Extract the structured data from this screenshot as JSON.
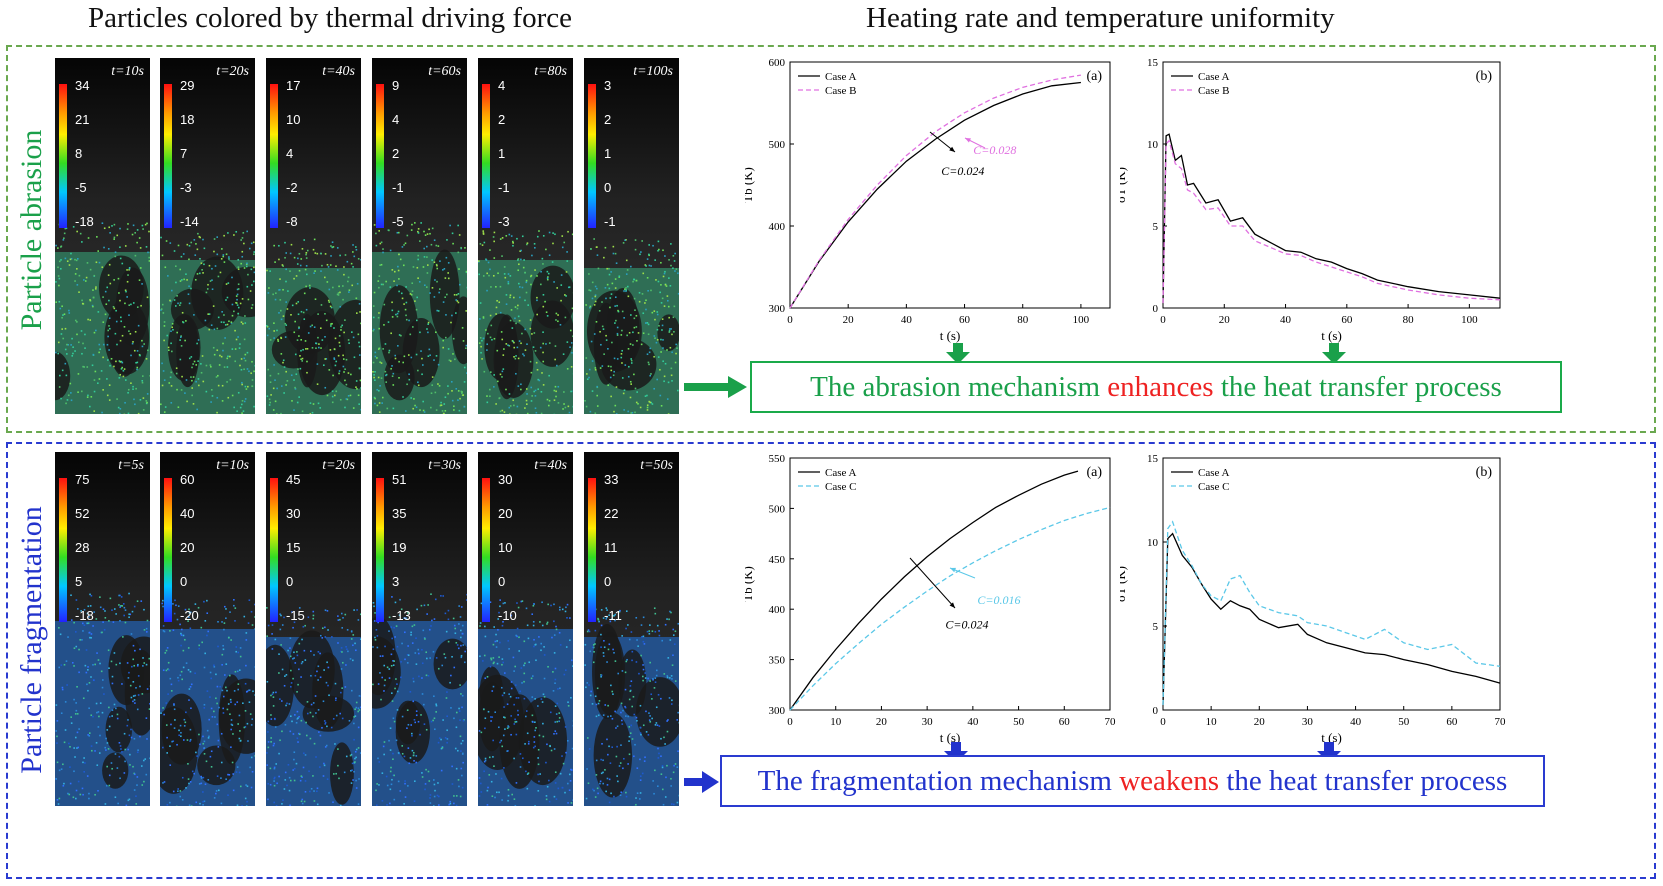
{
  "headers": {
    "left": "Particles colored by thermal driving force",
    "right": "Heating rate and temperature uniformity"
  },
  "colors": {
    "abrasion": "#1aa04a",
    "fragmentation": "#2233cc",
    "highlight": "#ee2222",
    "caseA": "#000000",
    "caseB": "#e070e0",
    "caseC": "#5bc8e8"
  },
  "abrasion": {
    "side_label": "Particle abrasion",
    "panels": [
      {
        "time": "t=10s",
        "ticks": [
          "34",
          "21",
          "8",
          "-5",
          "-18"
        ]
      },
      {
        "time": "t=20s",
        "ticks": [
          "29",
          "18",
          "7",
          "-3",
          "-14"
        ]
      },
      {
        "time": "t=40s",
        "ticks": [
          "17",
          "10",
          "4",
          "-2",
          "-8"
        ]
      },
      {
        "time": "t=60s",
        "ticks": [
          "9",
          "4",
          "2",
          "-1",
          "-5"
        ]
      },
      {
        "time": "t=80s",
        "ticks": [
          "4",
          "2",
          "1",
          "-1",
          "-3"
        ]
      },
      {
        "time": "t=100s",
        "ticks": [
          "3",
          "2",
          "1",
          "0",
          "-1"
        ]
      }
    ],
    "conclusion": {
      "before": "The abrasion mechanism ",
      "highlight": "enhances",
      "after": " the heat transfer process"
    }
  },
  "fragmentation": {
    "side_label": "Particle fragmentation",
    "panels": [
      {
        "time": "t=5s",
        "ticks": [
          "75",
          "52",
          "28",
          "5",
          "-18"
        ]
      },
      {
        "time": "t=10s",
        "ticks": [
          "60",
          "40",
          "20",
          "0",
          "-20"
        ]
      },
      {
        "time": "t=20s",
        "ticks": [
          "45",
          "30",
          "15",
          "0",
          "-15"
        ]
      },
      {
        "time": "t=30s",
        "ticks": [
          "51",
          "35",
          "19",
          "3",
          "-13"
        ]
      },
      {
        "time": "t=40s",
        "ticks": [
          "30",
          "20",
          "10",
          "0",
          "-10"
        ]
      },
      {
        "time": "t=50s",
        "ticks": [
          "33",
          "22",
          "11",
          "0",
          "-11"
        ]
      }
    ],
    "conclusion": {
      "before": "The fragmentation mechanism ",
      "highlight": "weakens",
      "after": " the heat transfer process"
    }
  },
  "chart_data": [
    {
      "type": "line",
      "panel": "(a)",
      "xlabel": "t (s)",
      "ylabel": "Tb (K)",
      "xlim": [
        0,
        110
      ],
      "ylim": [
        300,
        600
      ],
      "xticks": [
        0,
        20,
        40,
        60,
        80,
        100
      ],
      "yticks": [
        300,
        400,
        500,
        600
      ],
      "legend": "top-left",
      "series": [
        {
          "name": "Case A",
          "style": "solid",
          "color": "#000000",
          "x": [
            0,
            10,
            20,
            30,
            40,
            50,
            60,
            70,
            80,
            90,
            100
          ],
          "y": [
            300,
            357,
            405,
            445,
            479,
            506,
            529,
            547,
            561,
            571,
            575
          ]
        },
        {
          "name": "Case B",
          "style": "dashed",
          "color": "#e070e0",
          "x": [
            0,
            10,
            20,
            30,
            40,
            50,
            60,
            70,
            80,
            90,
            100
          ],
          "y": [
            300,
            358,
            408,
            450,
            486,
            515,
            538,
            556,
            569,
            578,
            584
          ]
        }
      ],
      "annotations": [
        {
          "text": "C=0.028",
          "color": "#e070e0",
          "x": 63,
          "y": 488
        },
        {
          "text": "C=0.024",
          "color": "#000000",
          "x": 52,
          "y": 462
        }
      ]
    },
    {
      "type": "line",
      "panel": "(b)",
      "xlabel": "t (s)",
      "ylabel": "σT (K)",
      "xlim": [
        0,
        110
      ],
      "ylim": [
        0,
        15
      ],
      "xticks": [
        0,
        20,
        40,
        60,
        80,
        100
      ],
      "yticks": [
        0,
        5,
        10,
        15
      ],
      "legend": "top-left",
      "series": [
        {
          "name": "Case A",
          "style": "solid",
          "color": "#000000",
          "x": [
            0,
            1,
            2,
            4,
            6,
            8,
            10,
            14,
            18,
            22,
            26,
            30,
            35,
            40,
            45,
            50,
            55,
            60,
            65,
            70,
            80,
            90,
            100,
            110
          ],
          "y": [
            0.3,
            10.5,
            10.6,
            9,
            9.3,
            7.5,
            7.6,
            6.4,
            6.6,
            5.3,
            5.5,
            4.5,
            4.0,
            3.5,
            3.4,
            3.0,
            2.8,
            2.4,
            2.1,
            1.7,
            1.3,
            1.0,
            0.8,
            0.6
          ]
        },
        {
          "name": "Case B",
          "style": "dashed",
          "color": "#e070e0",
          "x": [
            0,
            1,
            2,
            4,
            6,
            8,
            10,
            14,
            18,
            22,
            26,
            30,
            35,
            40,
            45,
            50,
            55,
            60,
            65,
            70,
            80,
            90,
            100,
            110
          ],
          "y": [
            0.3,
            10.0,
            10.2,
            8.8,
            8.5,
            7.2,
            7.0,
            6.0,
            6.1,
            5.0,
            5.0,
            4.1,
            3.7,
            3.3,
            3.2,
            2.8,
            2.5,
            2.2,
            1.9,
            1.5,
            1.1,
            0.8,
            0.6,
            0.5
          ]
        }
      ]
    },
    {
      "type": "line",
      "panel": "(a)",
      "xlabel": "t (s)",
      "ylabel": "Tb (K)",
      "xlim": [
        0,
        70
      ],
      "ylim": [
        300,
        550
      ],
      "xticks": [
        0,
        10,
        20,
        30,
        40,
        50,
        60,
        70
      ],
      "yticks": [
        300,
        350,
        400,
        450,
        500,
        550
      ],
      "legend": "top-left",
      "series": [
        {
          "name": "Case A",
          "style": "solid",
          "color": "#000000",
          "x": [
            0,
            5,
            10,
            15,
            20,
            25,
            30,
            35,
            40,
            45,
            50,
            55,
            60,
            63
          ],
          "y": [
            300,
            332,
            360,
            386,
            410,
            432,
            452,
            470,
            486,
            501,
            513,
            524,
            533,
            537
          ]
        },
        {
          "name": "Case C",
          "style": "dashed",
          "color": "#5bc8e8",
          "x": [
            0,
            5,
            10,
            15,
            20,
            25,
            30,
            35,
            40,
            45,
            50,
            55,
            60,
            65,
            70
          ],
          "y": [
            300,
            324,
            346,
            366,
            385,
            402,
            418,
            433,
            446,
            458,
            469,
            479,
            488,
            495,
            501
          ]
        }
      ],
      "annotations": [
        {
          "text": "C=0.016",
          "color": "#5bc8e8",
          "x": 41,
          "y": 405
        },
        {
          "text": "C=0.024",
          "color": "#000000",
          "x": 34,
          "y": 381
        }
      ]
    },
    {
      "type": "line",
      "panel": "(b)",
      "xlabel": "t (s)",
      "ylabel": "σT (K)",
      "xlim": [
        0,
        70
      ],
      "ylim": [
        0,
        15
      ],
      "xticks": [
        0,
        10,
        20,
        30,
        40,
        50,
        60,
        70
      ],
      "yticks": [
        0,
        5,
        10,
        15
      ],
      "legend": "top-left",
      "series": [
        {
          "name": "Case A",
          "style": "solid",
          "color": "#000000",
          "x": [
            0,
            1,
            2,
            4,
            6,
            8,
            10,
            12,
            14,
            16,
            18,
            20,
            24,
            28,
            30,
            34,
            38,
            42,
            46,
            50,
            55,
            60,
            65,
            70
          ],
          "y": [
            0.3,
            10.2,
            10.5,
            9.2,
            8.5,
            7.5,
            6.6,
            6.0,
            6.5,
            6.2,
            6.0,
            5.4,
            4.9,
            5.1,
            4.5,
            4.0,
            3.7,
            3.4,
            3.3,
            3.0,
            2.7,
            2.3,
            2.0,
            1.6
          ]
        },
        {
          "name": "Case C",
          "style": "dashed",
          "color": "#5bc8e8",
          "x": [
            0,
            1,
            2,
            4,
            6,
            8,
            10,
            12,
            14,
            16,
            18,
            20,
            24,
            28,
            30,
            34,
            38,
            42,
            46,
            50,
            55,
            60,
            65,
            70
          ],
          "y": [
            0.3,
            10.8,
            11.2,
            9.5,
            8.6,
            7.5,
            6.8,
            6.5,
            7.8,
            8.0,
            7.0,
            6.2,
            5.8,
            5.6,
            5.2,
            5.0,
            4.6,
            4.2,
            4.8,
            4.0,
            3.6,
            3.9,
            2.8,
            2.6
          ]
        }
      ]
    }
  ]
}
